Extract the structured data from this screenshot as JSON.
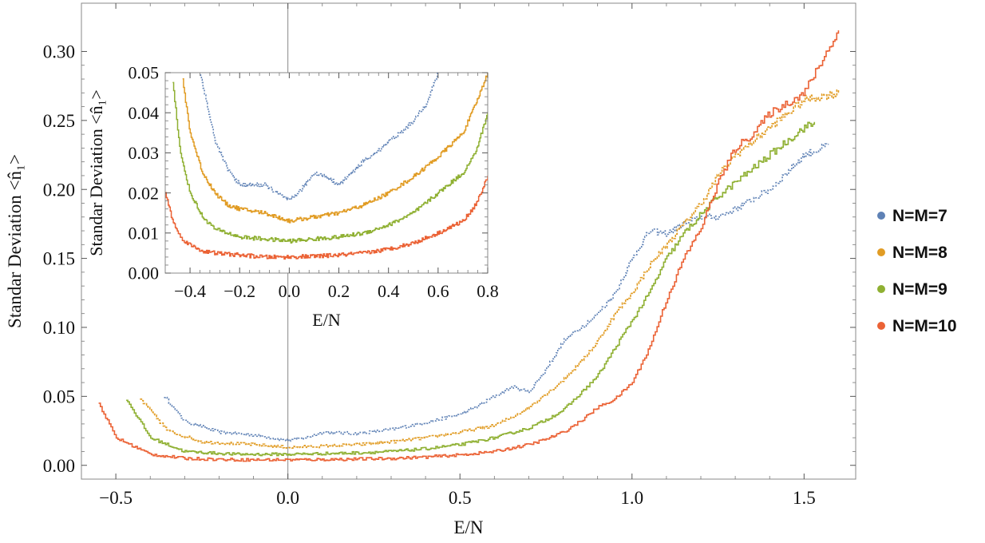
{
  "chart_data": [
    {
      "type": "line",
      "xlabel": "E/N",
      "ylabel": "Standar Deviation <n̂₁>",
      "xlim": [
        -0.6,
        1.65
      ],
      "ylim": [
        -0.01,
        0.335
      ],
      "xticks": [
        -0.5,
        0.0,
        0.5,
        1.0,
        1.5
      ],
      "xtick_labels": [
        "−0.5",
        "0.0",
        "0.5",
        "1.0",
        "1.5"
      ],
      "yticks": [
        0.0,
        0.05,
        0.1,
        0.15,
        0.2,
        0.25,
        0.3
      ],
      "ytick_labels": [
        "0.00",
        "0.05",
        "0.10",
        "0.15",
        "0.20",
        "0.25",
        "0.30"
      ],
      "vertical_reference_line_x": 0.0,
      "legend": "right",
      "series": [
        {
          "name": "N=M=7",
          "color": "#5e81b5",
          "x": [
            -0.36,
            -0.3,
            -0.2,
            -0.1,
            0.0,
            0.05,
            0.1,
            0.2,
            0.3,
            0.4,
            0.5,
            0.55,
            0.6,
            0.65,
            0.7,
            0.75,
            0.8,
            0.85,
            0.9,
            0.95,
            1.0,
            1.05,
            1.1,
            1.15,
            1.2,
            1.25,
            1.3,
            1.4,
            1.5,
            1.57
          ],
          "y": [
            0.05,
            0.032,
            0.024,
            0.022,
            0.018,
            0.02,
            0.024,
            0.023,
            0.026,
            0.031,
            0.037,
            0.043,
            0.05,
            0.057,
            0.053,
            0.07,
            0.09,
            0.1,
            0.11,
            0.125,
            0.15,
            0.17,
            0.168,
            0.175,
            0.18,
            0.18,
            0.186,
            0.2,
            0.225,
            0.232
          ]
        },
        {
          "name": "N=M=8",
          "color": "#e19c24",
          "x": [
            -0.43,
            -0.35,
            -0.25,
            -0.1,
            0.0,
            0.1,
            0.2,
            0.3,
            0.4,
            0.5,
            0.6,
            0.65,
            0.7,
            0.75,
            0.8,
            0.85,
            0.9,
            0.95,
            1.0,
            1.05,
            1.1,
            1.15,
            1.2,
            1.25,
            1.3,
            1.4,
            1.5,
            1.6
          ],
          "y": [
            0.048,
            0.025,
            0.017,
            0.015,
            0.013,
            0.014,
            0.015,
            0.017,
            0.02,
            0.024,
            0.029,
            0.035,
            0.042,
            0.052,
            0.062,
            0.075,
            0.09,
            0.11,
            0.125,
            0.145,
            0.16,
            0.175,
            0.19,
            0.21,
            0.225,
            0.245,
            0.265,
            0.27
          ]
        },
        {
          "name": "N=M=9",
          "color": "#8fb032",
          "x": [
            -0.47,
            -0.4,
            -0.3,
            -0.15,
            0.0,
            0.1,
            0.2,
            0.3,
            0.4,
            0.5,
            0.6,
            0.7,
            0.75,
            0.8,
            0.85,
            0.9,
            0.95,
            1.0,
            1.05,
            1.1,
            1.15,
            1.2,
            1.25,
            1.3,
            1.4,
            1.5,
            1.53
          ],
          "y": [
            0.048,
            0.02,
            0.01,
            0.008,
            0.008,
            0.0085,
            0.009,
            0.01,
            0.012,
            0.015,
            0.02,
            0.027,
            0.033,
            0.04,
            0.052,
            0.065,
            0.085,
            0.105,
            0.125,
            0.15,
            0.168,
            0.182,
            0.195,
            0.205,
            0.225,
            0.245,
            0.248
          ]
        },
        {
          "name": "N=M=10",
          "color": "#eb6235",
          "x": [
            -0.55,
            -0.5,
            -0.4,
            -0.3,
            -0.15,
            0.0,
            0.1,
            0.2,
            0.3,
            0.4,
            0.5,
            0.6,
            0.7,
            0.75,
            0.8,
            0.85,
            0.9,
            0.95,
            1.0,
            1.05,
            1.1,
            1.15,
            1.2,
            1.25,
            1.3,
            1.35,
            1.4,
            1.5,
            1.6
          ],
          "y": [
            0.045,
            0.02,
            0.008,
            0.005,
            0.004,
            0.004,
            0.0042,
            0.0045,
            0.005,
            0.006,
            0.0075,
            0.01,
            0.015,
            0.019,
            0.024,
            0.032,
            0.042,
            0.048,
            0.06,
            0.085,
            0.12,
            0.15,
            0.172,
            0.205,
            0.23,
            0.24,
            0.255,
            0.27,
            0.315
          ]
        }
      ]
    },
    {
      "type": "line",
      "inset": true,
      "xlabel": "E/N",
      "ylabel": "Standar Deviation <n̂₁>",
      "xlim": [
        -0.5,
        0.8
      ],
      "ylim": [
        0.0,
        0.05
      ],
      "xticks": [
        -0.4,
        -0.2,
        0.0,
        0.2,
        0.4,
        0.6,
        0.8
      ],
      "xtick_labels": [
        "−0.4",
        "−0.2",
        "0.0",
        "0.2",
        "0.4",
        "0.6",
        "0.8"
      ],
      "yticks": [
        0.0,
        0.01,
        0.02,
        0.03,
        0.04,
        0.05
      ],
      "ytick_labels": [
        "0.00",
        "0.01",
        "0.02",
        "0.03",
        "0.04",
        "0.05"
      ],
      "series": [
        {
          "name": "N=M=7",
          "color": "#5e81b5",
          "x": [
            -0.36,
            -0.3,
            -0.25,
            -0.2,
            -0.15,
            -0.1,
            -0.05,
            0.0,
            0.05,
            0.1,
            0.15,
            0.2,
            0.25,
            0.3,
            0.35,
            0.4,
            0.45,
            0.5,
            0.55,
            0.6
          ],
          "y": [
            0.05,
            0.033,
            0.026,
            0.022,
            0.022,
            0.022,
            0.02,
            0.018,
            0.021,
            0.025,
            0.024,
            0.022,
            0.025,
            0.028,
            0.03,
            0.033,
            0.035,
            0.038,
            0.042,
            0.05
          ]
        },
        {
          "name": "N=M=8",
          "color": "#e19c24",
          "x": [
            -0.43,
            -0.4,
            -0.35,
            -0.3,
            -0.25,
            -0.2,
            -0.1,
            0.0,
            0.1,
            0.2,
            0.3,
            0.4,
            0.5,
            0.6,
            0.7,
            0.75,
            0.8
          ],
          "y": [
            0.048,
            0.035,
            0.025,
            0.02,
            0.017,
            0.016,
            0.015,
            0.013,
            0.014,
            0.015,
            0.017,
            0.02,
            0.024,
            0.029,
            0.035,
            0.042,
            0.05
          ]
        },
        {
          "name": "N=M=9",
          "color": "#8fb032",
          "x": [
            -0.47,
            -0.44,
            -0.4,
            -0.35,
            -0.3,
            -0.2,
            -0.1,
            0.0,
            0.1,
            0.2,
            0.3,
            0.4,
            0.5,
            0.6,
            0.7,
            0.75,
            0.8
          ],
          "y": [
            0.048,
            0.03,
            0.02,
            0.014,
            0.011,
            0.009,
            0.0085,
            0.008,
            0.0085,
            0.009,
            0.01,
            0.012,
            0.015,
            0.02,
            0.025,
            0.03,
            0.04
          ]
        },
        {
          "name": "N=M=10",
          "color": "#eb6235",
          "x": [
            -0.5,
            -0.47,
            -0.44,
            -0.4,
            -0.35,
            -0.3,
            -0.2,
            -0.1,
            0.0,
            0.1,
            0.2,
            0.3,
            0.4,
            0.5,
            0.6,
            0.7,
            0.75,
            0.8
          ],
          "y": [
            0.02,
            0.013,
            0.009,
            0.007,
            0.0055,
            0.005,
            0.0045,
            0.004,
            0.004,
            0.0042,
            0.0045,
            0.005,
            0.006,
            0.0075,
            0.01,
            0.013,
            0.017,
            0.024
          ]
        }
      ]
    }
  ]
}
